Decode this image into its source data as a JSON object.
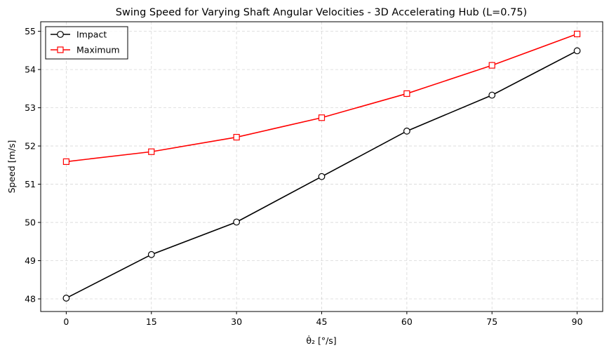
{
  "chart_data": {
    "type": "line",
    "title": "Swing Speed for Varying Shaft Angular Velocities - 3D Accelerating Hub (L=0.75)",
    "xlabel": "θ̇₂ [°/s]",
    "ylabel": "Speed [m/s]",
    "x": [
      0,
      15,
      30,
      45,
      60,
      75,
      90
    ],
    "x_ticks": [
      0,
      15,
      30,
      45,
      60,
      75,
      90
    ],
    "y_ticks": [
      48,
      49,
      50,
      51,
      52,
      53,
      54,
      55
    ],
    "xlim": [
      -4.5,
      94.5
    ],
    "ylim": [
      47.67,
      55.25
    ],
    "grid": true,
    "legend_position": "top-left",
    "series": [
      {
        "name": "Impact",
        "color": "#000000",
        "marker": "circle",
        "values": [
          48.02,
          49.16,
          50.01,
          51.2,
          52.39,
          53.33,
          54.49
        ]
      },
      {
        "name": "Maximum",
        "color": "#ff0000",
        "marker": "square",
        "values": [
          51.59,
          51.85,
          52.23,
          52.74,
          53.37,
          54.11,
          54.93
        ]
      }
    ]
  }
}
